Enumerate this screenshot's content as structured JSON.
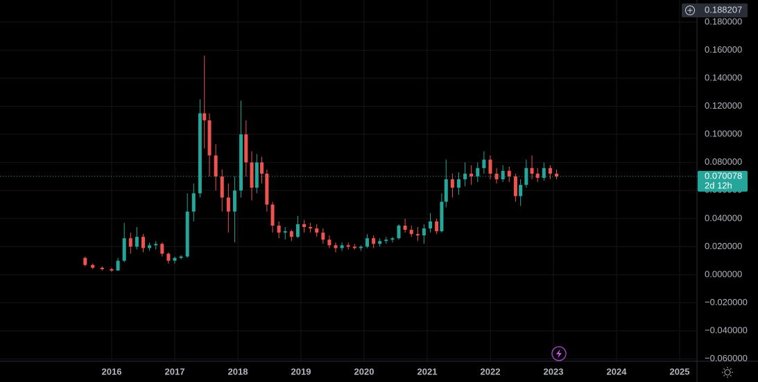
{
  "chart_data": {
    "type": "candlestick",
    "x": [
      2015.58,
      2015.7,
      2015.85,
      2016.0,
      2016.1,
      2016.2,
      2016.3,
      2016.4,
      2016.5,
      2016.6,
      2016.7,
      2016.8,
      2016.9,
      2017.0,
      2017.1,
      2017.2,
      2017.3,
      2017.4,
      2017.47,
      2017.55,
      2017.65,
      2017.75,
      2017.85,
      2017.95,
      2018.05,
      2018.13,
      2018.22,
      2018.3,
      2018.38,
      2018.46,
      2018.55,
      2018.65,
      2018.75,
      2018.85,
      2018.95,
      2019.05,
      2019.15,
      2019.25,
      2019.35,
      2019.45,
      2019.55,
      2019.65,
      2019.75,
      2019.85,
      2019.95,
      2020.05,
      2020.15,
      2020.25,
      2020.35,
      2020.45,
      2020.55,
      2020.65,
      2020.75,
      2020.85,
      2020.95,
      2021.05,
      2021.15,
      2021.23,
      2021.3,
      2021.4,
      2021.5,
      2021.6,
      2021.7,
      2021.8,
      2021.9,
      2022.0,
      2022.1,
      2022.2,
      2022.3,
      2022.4,
      2022.48,
      2022.57,
      2022.66,
      2022.75,
      2022.85,
      2022.95,
      2023.05
    ],
    "open": [
      0.012,
      0.007,
      0.005,
      0.004,
      0.003,
      0.01,
      0.026,
      0.02,
      0.027,
      0.019,
      0.021,
      0.022,
      0.015,
      0.01,
      0.012,
      0.013,
      0.045,
      0.058,
      0.115,
      0.11,
      0.085,
      0.07,
      0.055,
      0.045,
      0.06,
      0.1,
      0.08,
      0.062,
      0.08,
      0.072,
      0.05,
      0.035,
      0.03,
      0.031,
      0.027,
      0.036,
      0.034,
      0.033,
      0.03,
      0.025,
      0.021,
      0.019,
      0.021,
      0.02,
      0.019,
      0.02,
      0.026,
      0.022,
      0.024,
      0.025,
      0.026,
      0.035,
      0.032,
      0.029,
      0.028,
      0.033,
      0.038,
      0.031,
      0.052,
      0.068,
      0.062,
      0.068,
      0.072,
      0.07,
      0.076,
      0.082,
      0.072,
      0.068,
      0.074,
      0.07,
      0.056,
      0.064,
      0.076,
      0.072,
      0.069,
      0.076,
      0.072
    ],
    "high": [
      0.013,
      0.008,
      0.006,
      0.005,
      0.012,
      0.037,
      0.03,
      0.034,
      0.029,
      0.023,
      0.024,
      0.023,
      0.016,
      0.013,
      0.014,
      0.058,
      0.065,
      0.125,
      0.156,
      0.115,
      0.093,
      0.075,
      0.065,
      0.07,
      0.124,
      0.11,
      0.088,
      0.086,
      0.084,
      0.075,
      0.052,
      0.038,
      0.034,
      0.032,
      0.042,
      0.039,
      0.037,
      0.036,
      0.033,
      0.028,
      0.023,
      0.023,
      0.023,
      0.022,
      0.021,
      0.029,
      0.028,
      0.026,
      0.027,
      0.027,
      0.036,
      0.04,
      0.035,
      0.034,
      0.036,
      0.044,
      0.04,
      0.058,
      0.082,
      0.072,
      0.073,
      0.08,
      0.078,
      0.08,
      0.088,
      0.085,
      0.076,
      0.078,
      0.077,
      0.072,
      0.068,
      0.082,
      0.085,
      0.076,
      0.08,
      0.078,
      0.075
    ],
    "low": [
      0.006,
      0.004,
      0.003,
      0.002,
      0.003,
      0.009,
      0.015,
      0.018,
      0.016,
      0.017,
      0.018,
      0.013,
      0.008,
      0.008,
      0.011,
      0.012,
      0.038,
      0.055,
      0.09,
      0.07,
      0.06,
      0.045,
      0.03,
      0.023,
      0.055,
      0.07,
      0.053,
      0.058,
      0.065,
      0.045,
      0.03,
      0.026,
      0.025,
      0.024,
      0.026,
      0.03,
      0.03,
      0.027,
      0.022,
      0.019,
      0.016,
      0.017,
      0.018,
      0.018,
      0.017,
      0.019,
      0.019,
      0.02,
      0.022,
      0.023,
      0.025,
      0.03,
      0.027,
      0.024,
      0.022,
      0.03,
      0.029,
      0.03,
      0.048,
      0.055,
      0.057,
      0.063,
      0.064,
      0.066,
      0.072,
      0.068,
      0.065,
      0.066,
      0.066,
      0.052,
      0.049,
      0.062,
      0.068,
      0.066,
      0.067,
      0.068,
      0.068
    ],
    "close": [
      0.007,
      0.005,
      0.004,
      0.003,
      0.01,
      0.026,
      0.02,
      0.027,
      0.019,
      0.021,
      0.022,
      0.015,
      0.01,
      0.012,
      0.013,
      0.045,
      0.058,
      0.115,
      0.11,
      0.085,
      0.07,
      0.055,
      0.045,
      0.06,
      0.1,
      0.08,
      0.062,
      0.08,
      0.072,
      0.05,
      0.035,
      0.03,
      0.031,
      0.027,
      0.036,
      0.034,
      0.033,
      0.03,
      0.025,
      0.021,
      0.019,
      0.021,
      0.02,
      0.019,
      0.02,
      0.026,
      0.022,
      0.024,
      0.025,
      0.026,
      0.035,
      0.032,
      0.029,
      0.028,
      0.033,
      0.038,
      0.031,
      0.052,
      0.068,
      0.062,
      0.068,
      0.072,
      0.07,
      0.076,
      0.082,
      0.072,
      0.068,
      0.074,
      0.07,
      0.056,
      0.064,
      0.076,
      0.072,
      0.069,
      0.076,
      0.072,
      0.07
    ],
    "up_color": "#26a69a",
    "down_color": "#ef5350",
    "xlim": [
      2014.231,
      2025.275
    ],
    "xticks": [
      2016,
      2017,
      2018,
      2019,
      2020,
      2021,
      2022,
      2023,
      2024,
      2025
    ],
    "ylim": [
      -0.0616,
      0.1957
    ],
    "yticks": [
      {
        "value": -0.06,
        "label": "−0.060000"
      },
      {
        "value": -0.04,
        "label": "−0.040000"
      },
      {
        "value": -0.02,
        "label": "−0.020000"
      },
      {
        "value": 0,
        "label": "0.000000"
      },
      {
        "value": 0.02,
        "label": "0.020000"
      },
      {
        "value": 0.04,
        "label": "0.040000"
      },
      {
        "value": 0.06,
        "label": "0.060000"
      },
      {
        "value": 0.08,
        "label": "0.080000"
      },
      {
        "value": 0.1,
        "label": "0.100000"
      },
      {
        "value": 0.12,
        "label": "0.120000"
      },
      {
        "value": 0.14,
        "label": "0.140000"
      },
      {
        "value": 0.16,
        "label": "0.160000"
      },
      {
        "value": 0.18,
        "label": "0.180000"
      }
    ],
    "grid": true,
    "last_price": 0.070078,
    "countdown": "2d 12h",
    "crosshair_price": 0.188207
  }
}
